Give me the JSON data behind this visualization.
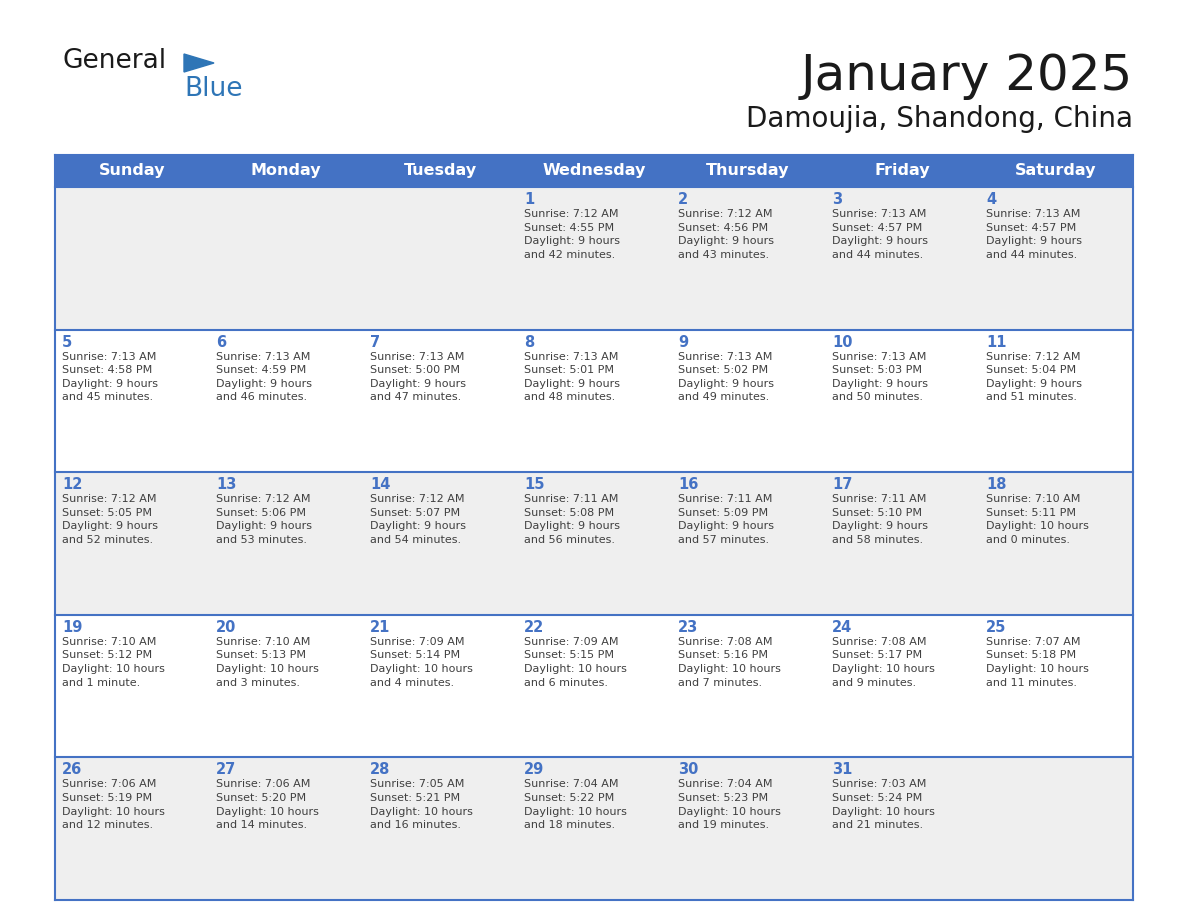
{
  "title": "January 2025",
  "subtitle": "Damoujia, Shandong, China",
  "days_of_week": [
    "Sunday",
    "Monday",
    "Tuesday",
    "Wednesday",
    "Thursday",
    "Friday",
    "Saturday"
  ],
  "header_bg": "#4472C4",
  "header_text_color": "#FFFFFF",
  "cell_bg_white": "#FFFFFF",
  "cell_bg_gray": "#EFEFEF",
  "divider_color": "#4472C4",
  "day_num_color": "#4472C4",
  "cell_text_color": "#404040",
  "title_color": "#1a1a1a",
  "subtitle_color": "#1a1a1a",
  "logo_general_color": "#1a1a1a",
  "logo_blue_color": "#2E75B6",
  "calendar_data": [
    [
      {
        "day": null,
        "info": null
      },
      {
        "day": null,
        "info": null
      },
      {
        "day": null,
        "info": null
      },
      {
        "day": 1,
        "info": "Sunrise: 7:12 AM\nSunset: 4:55 PM\nDaylight: 9 hours\nand 42 minutes."
      },
      {
        "day": 2,
        "info": "Sunrise: 7:12 AM\nSunset: 4:56 PM\nDaylight: 9 hours\nand 43 minutes."
      },
      {
        "day": 3,
        "info": "Sunrise: 7:13 AM\nSunset: 4:57 PM\nDaylight: 9 hours\nand 44 minutes."
      },
      {
        "day": 4,
        "info": "Sunrise: 7:13 AM\nSunset: 4:57 PM\nDaylight: 9 hours\nand 44 minutes."
      }
    ],
    [
      {
        "day": 5,
        "info": "Sunrise: 7:13 AM\nSunset: 4:58 PM\nDaylight: 9 hours\nand 45 minutes."
      },
      {
        "day": 6,
        "info": "Sunrise: 7:13 AM\nSunset: 4:59 PM\nDaylight: 9 hours\nand 46 minutes."
      },
      {
        "day": 7,
        "info": "Sunrise: 7:13 AM\nSunset: 5:00 PM\nDaylight: 9 hours\nand 47 minutes."
      },
      {
        "day": 8,
        "info": "Sunrise: 7:13 AM\nSunset: 5:01 PM\nDaylight: 9 hours\nand 48 minutes."
      },
      {
        "day": 9,
        "info": "Sunrise: 7:13 AM\nSunset: 5:02 PM\nDaylight: 9 hours\nand 49 minutes."
      },
      {
        "day": 10,
        "info": "Sunrise: 7:13 AM\nSunset: 5:03 PM\nDaylight: 9 hours\nand 50 minutes."
      },
      {
        "day": 11,
        "info": "Sunrise: 7:12 AM\nSunset: 5:04 PM\nDaylight: 9 hours\nand 51 minutes."
      }
    ],
    [
      {
        "day": 12,
        "info": "Sunrise: 7:12 AM\nSunset: 5:05 PM\nDaylight: 9 hours\nand 52 minutes."
      },
      {
        "day": 13,
        "info": "Sunrise: 7:12 AM\nSunset: 5:06 PM\nDaylight: 9 hours\nand 53 minutes."
      },
      {
        "day": 14,
        "info": "Sunrise: 7:12 AM\nSunset: 5:07 PM\nDaylight: 9 hours\nand 54 minutes."
      },
      {
        "day": 15,
        "info": "Sunrise: 7:11 AM\nSunset: 5:08 PM\nDaylight: 9 hours\nand 56 minutes."
      },
      {
        "day": 16,
        "info": "Sunrise: 7:11 AM\nSunset: 5:09 PM\nDaylight: 9 hours\nand 57 minutes."
      },
      {
        "day": 17,
        "info": "Sunrise: 7:11 AM\nSunset: 5:10 PM\nDaylight: 9 hours\nand 58 minutes."
      },
      {
        "day": 18,
        "info": "Sunrise: 7:10 AM\nSunset: 5:11 PM\nDaylight: 10 hours\nand 0 minutes."
      }
    ],
    [
      {
        "day": 19,
        "info": "Sunrise: 7:10 AM\nSunset: 5:12 PM\nDaylight: 10 hours\nand 1 minute."
      },
      {
        "day": 20,
        "info": "Sunrise: 7:10 AM\nSunset: 5:13 PM\nDaylight: 10 hours\nand 3 minutes."
      },
      {
        "day": 21,
        "info": "Sunrise: 7:09 AM\nSunset: 5:14 PM\nDaylight: 10 hours\nand 4 minutes."
      },
      {
        "day": 22,
        "info": "Sunrise: 7:09 AM\nSunset: 5:15 PM\nDaylight: 10 hours\nand 6 minutes."
      },
      {
        "day": 23,
        "info": "Sunrise: 7:08 AM\nSunset: 5:16 PM\nDaylight: 10 hours\nand 7 minutes."
      },
      {
        "day": 24,
        "info": "Sunrise: 7:08 AM\nSunset: 5:17 PM\nDaylight: 10 hours\nand 9 minutes."
      },
      {
        "day": 25,
        "info": "Sunrise: 7:07 AM\nSunset: 5:18 PM\nDaylight: 10 hours\nand 11 minutes."
      }
    ],
    [
      {
        "day": 26,
        "info": "Sunrise: 7:06 AM\nSunset: 5:19 PM\nDaylight: 10 hours\nand 12 minutes."
      },
      {
        "day": 27,
        "info": "Sunrise: 7:06 AM\nSunset: 5:20 PM\nDaylight: 10 hours\nand 14 minutes."
      },
      {
        "day": 28,
        "info": "Sunrise: 7:05 AM\nSunset: 5:21 PM\nDaylight: 10 hours\nand 16 minutes."
      },
      {
        "day": 29,
        "info": "Sunrise: 7:04 AM\nSunset: 5:22 PM\nDaylight: 10 hours\nand 18 minutes."
      },
      {
        "day": 30,
        "info": "Sunrise: 7:04 AM\nSunset: 5:23 PM\nDaylight: 10 hours\nand 19 minutes."
      },
      {
        "day": 31,
        "info": "Sunrise: 7:03 AM\nSunset: 5:24 PM\nDaylight: 10 hours\nand 21 minutes."
      },
      {
        "day": null,
        "info": null
      }
    ]
  ],
  "row_bg_pattern": [
    1,
    0,
    1,
    0,
    1
  ]
}
